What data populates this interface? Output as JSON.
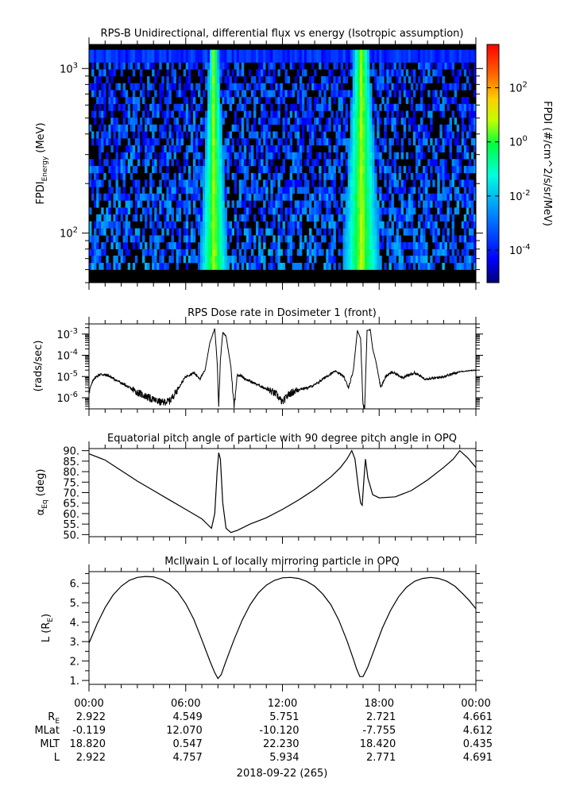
{
  "chart_data": [
    {
      "type": "heatmap",
      "title": "RPS-B  Unidirectional, differential flux vs energy (Isotropic assumption)",
      "ylabel_main": "FPDI",
      "ylabel_sub": "Energy",
      "ylabel_unit": " (MeV)",
      "y_scale": "log",
      "ylim": [
        50,
        1400
      ],
      "y_ticks": [
        {
          "value": 100,
          "base": "10",
          "exp": "2"
        },
        {
          "value": 1000,
          "base": "10",
          "exp": "3"
        }
      ],
      "x_range_hours": [
        0,
        24
      ],
      "bands_mev": [
        60,
        66,
        73,
        80,
        88,
        97,
        107,
        118,
        130,
        143,
        158,
        174,
        191,
        211,
        232,
        256,
        282,
        310,
        342,
        377,
        415,
        457,
        503,
        554,
        610,
        672,
        740,
        815,
        898,
        989,
        1090,
        1300
      ],
      "hot_stripes_hours": [
        {
          "center": 7.75,
          "width_low": 0.9,
          "width_high": 0.3
        },
        {
          "center": 16.9,
          "width_low": 1.2,
          "width_high": 0.5
        }
      ],
      "colorbar": {
        "label": "FPDI (#/cm^2/s/sr/MeV)",
        "scale": "log",
        "range_exp": [
          -5.2,
          3.6
        ],
        "ticks": [
          {
            "exp": "2",
            "base": "10",
            "value": 2
          },
          {
            "exp": "0",
            "base": "10",
            "value": 0
          },
          {
            "exp": "-2",
            "base": "10",
            "value": -2
          },
          {
            "exp": "-4",
            "base": "10",
            "value": -4
          }
        ]
      }
    },
    {
      "type": "line",
      "title": "RPS  Dose rate in Dosimeter 1 (front)",
      "ylabel": "(rads/sec)",
      "y_scale": "log",
      "ylim": [
        3e-07,
        0.003
      ],
      "y_ticks": [
        {
          "value": 1e-06,
          "base": "10",
          "exp": "-6"
        },
        {
          "value": 1e-05,
          "base": "10",
          "exp": "-5"
        },
        {
          "value": 0.0001,
          "base": "10",
          "exp": "-4"
        },
        {
          "value": 0.001,
          "base": "10",
          "exp": "-3"
        }
      ],
      "x_range_hours": [
        0,
        24
      ],
      "x_hours": [
        0,
        0.3,
        0.7,
        1.2,
        2.0,
        3.0,
        4.0,
        4.5,
        5.0,
        5.5,
        6.0,
        6.5,
        6.9,
        7.2,
        7.5,
        7.8,
        7.95,
        8.05,
        8.15,
        8.3,
        8.5,
        8.8,
        9.0,
        9.2,
        9.4,
        9.8,
        10.5,
        11.2,
        11.6,
        12.0,
        12.4,
        13.0,
        13.6,
        14.0,
        14.8,
        15.3,
        15.8,
        16.1,
        16.4,
        16.65,
        16.85,
        17.0,
        17.1,
        17.25,
        17.45,
        17.6,
        17.8,
        18.1,
        18.4,
        18.8,
        19.5,
        20.2,
        20.8,
        21.3,
        22.0,
        23.0,
        24.0
      ],
      "values": [
        2e-06,
        8e-06,
        1.3e-05,
        1.1e-05,
        5e-06,
        1.8e-06,
        8e-07,
        6e-07,
        7e-07,
        2.5e-06,
        1e-05,
        1.5e-05,
        8e-06,
        2e-05,
        0.0004,
        0.0018,
        5e-05,
        4e-07,
        6e-05,
        0.0012,
        0.0008,
        3e-05,
        4e-07,
        1.2e-05,
        1.1e-05,
        7e-06,
        4e-06,
        2.2e-06,
        1.5e-06,
        6e-07,
        1.5e-06,
        2.5e-06,
        3e-06,
        4e-06,
        1.1e-05,
        1.8e-05,
        1e-05,
        3e-06,
        2e-05,
        0.0015,
        0.0006,
        4e-07,
        3e-07,
        0.0015,
        0.0016,
        0.0002,
        5e-05,
        3e-06,
        1e-05,
        1.6e-05,
        9e-06,
        1.5e-05,
        8e-06,
        8e-06,
        1e-05,
        1.7e-05,
        2e-05
      ]
    },
    {
      "type": "line",
      "title": "Equatorial pitch angle of particle with 90 degree pitch angle in OPQ",
      "ylabel_main": "α",
      "ylabel_sub": "Eq",
      "ylabel_unit": " (deg)",
      "ylim": [
        49,
        91
      ],
      "y_ticks": [
        "90.",
        "85.",
        "80.",
        "75.",
        "70.",
        "65.",
        "60.",
        "55.",
        "50."
      ],
      "y_tick_values": [
        90,
        85,
        80,
        75,
        70,
        65,
        60,
        55,
        50
      ],
      "x_range_hours": [
        0,
        24
      ],
      "x_hours": [
        0,
        1.0,
        2.0,
        3.0,
        4.0,
        5.0,
        6.0,
        7.0,
        7.4,
        7.6,
        7.8,
        7.95,
        8.05,
        8.15,
        8.3,
        8.5,
        8.8,
        9.2,
        10.0,
        11.0,
        12.0,
        13.0,
        14.0,
        15.0,
        15.6,
        16.0,
        16.3,
        16.5,
        16.7,
        16.85,
        16.95,
        17.05,
        17.15,
        17.3,
        17.6,
        18.0,
        19.0,
        20.0,
        21.0,
        22.0,
        22.6,
        23.0,
        23.5,
        24.0
      ],
      "values": [
        88.5,
        85.5,
        80.5,
        75.5,
        71,
        66.5,
        62,
        57.5,
        54.5,
        53,
        60,
        80,
        89,
        86,
        65,
        53,
        51,
        52,
        55,
        58,
        62,
        66.5,
        71.5,
        77.5,
        82,
        86,
        90,
        86,
        73,
        65,
        64,
        76,
        86,
        77,
        69,
        67.5,
        68,
        71,
        76,
        82,
        86,
        90,
        86.5,
        82
      ]
    },
    {
      "type": "line",
      "title": "McIlwain L of locally mirroring particle in OPQ",
      "ylabel_main": "L (R",
      "ylabel_sub": "E",
      "ylabel_unit": ")",
      "ylim": [
        0.8,
        6.6
      ],
      "y_ticks": [
        "6.",
        "5.",
        "4.",
        "3.",
        "2.",
        "1."
      ],
      "y_tick_values": [
        6,
        5,
        4,
        3,
        2,
        1
      ],
      "x_range_hours": [
        0,
        24
      ],
      "x_hours": [
        0,
        0.5,
        1.0,
        1.5,
        2.0,
        2.5,
        3.0,
        3.5,
        4.0,
        4.5,
        5.0,
        5.5,
        6.0,
        6.5,
        7.0,
        7.5,
        7.8,
        8.0,
        8.2,
        8.5,
        9.0,
        9.5,
        10.0,
        10.5,
        11.0,
        11.5,
        12.0,
        12.5,
        13.0,
        13.5,
        14.0,
        14.5,
        15.0,
        15.5,
        16.0,
        16.4,
        16.6,
        16.8,
        17.0,
        17.3,
        17.7,
        18.2,
        18.7,
        19.2,
        19.7,
        20.2,
        20.7,
        21.2,
        21.7,
        22.2,
        22.7,
        23.2,
        23.6,
        24.0
      ],
      "values": [
        2.92,
        3.9,
        4.75,
        5.4,
        5.85,
        6.15,
        6.3,
        6.35,
        6.33,
        6.2,
        5.95,
        5.55,
        4.95,
        4.15,
        3.1,
        2.0,
        1.4,
        1.1,
        1.3,
        2.0,
        3.1,
        4.1,
        4.9,
        5.5,
        5.9,
        6.15,
        6.28,
        6.3,
        6.25,
        6.1,
        5.85,
        5.45,
        4.9,
        4.1,
        3.05,
        2.1,
        1.6,
        1.2,
        1.2,
        1.7,
        2.6,
        3.7,
        4.6,
        5.3,
        5.8,
        6.1,
        6.25,
        6.3,
        6.25,
        6.1,
        5.85,
        5.45,
        5.1,
        4.69
      ]
    }
  ],
  "x_axis": {
    "tick_labels": [
      "00:00",
      "06:00",
      "12:00",
      "18:00",
      "00:00"
    ],
    "tick_hours": [
      0,
      6,
      12,
      18,
      24
    ],
    "minor_step_hours": 1,
    "rows": [
      {
        "label": "R",
        "label_sub": "E",
        "values": [
          "2.922",
          "4.549",
          "5.751",
          "2.721",
          "4.661"
        ]
      },
      {
        "label": "MLat",
        "label_sub": "",
        "values": [
          "-0.119",
          "12.070",
          "-10.120",
          "-7.755",
          "4.612"
        ]
      },
      {
        "label": "MLT",
        "label_sub": "",
        "values": [
          "18.820",
          "0.547",
          "22.230",
          "18.420",
          "0.435"
        ]
      },
      {
        "label": "L",
        "label_sub": "",
        "values": [
          "2.922",
          "4.757",
          "5.934",
          "2.771",
          "4.691"
        ]
      }
    ],
    "date_label": "2018-09-22 (265)"
  }
}
